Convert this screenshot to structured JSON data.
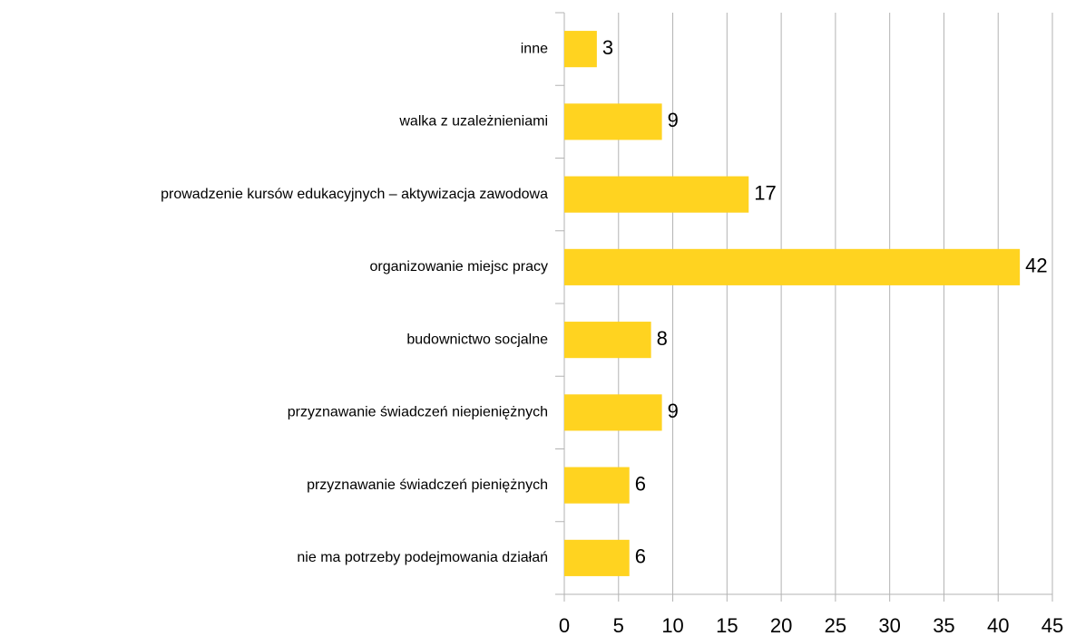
{
  "chart_data": {
    "type": "hbar",
    "categories": [
      "inne",
      "walka z uzależnieniami",
      "prowadzenie kursów edukacyjnych – aktywizacja zawodowa",
      "organizowanie miejsc pracy",
      "budownictwo socjalne",
      "przyznawanie świadczeń niepieniężnych",
      "przyznawanie świadczeń pieniężnych",
      "nie ma potrzeby podejmowania działań"
    ],
    "values": [
      3,
      9,
      17,
      42,
      8,
      9,
      6,
      6
    ],
    "color": "#ffd320",
    "xlim": [
      0,
      45
    ],
    "xticks": [
      0,
      5,
      10,
      15,
      20,
      25,
      30,
      35,
      40,
      45
    ],
    "grid": true
  }
}
